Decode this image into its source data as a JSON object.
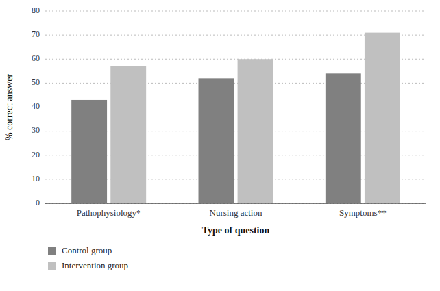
{
  "chart_data": {
    "type": "bar",
    "categories": [
      "Pathophysiology*",
      "Nursing action",
      "Symptoms**"
    ],
    "series": [
      {
        "name": "Control group",
        "color": "#808080",
        "values": [
          43,
          52,
          54
        ]
      },
      {
        "name": "Intervention group",
        "color": "#c0c0c0",
        "values": [
          57,
          60,
          71
        ]
      }
    ],
    "xlabel": "Type of question",
    "ylabel": "% correct answer",
    "ylim": [
      0,
      80
    ],
    "yticks": [
      0,
      10,
      20,
      30,
      40,
      50,
      60,
      70,
      80
    ],
    "grid": true,
    "legend": "bottom"
  }
}
